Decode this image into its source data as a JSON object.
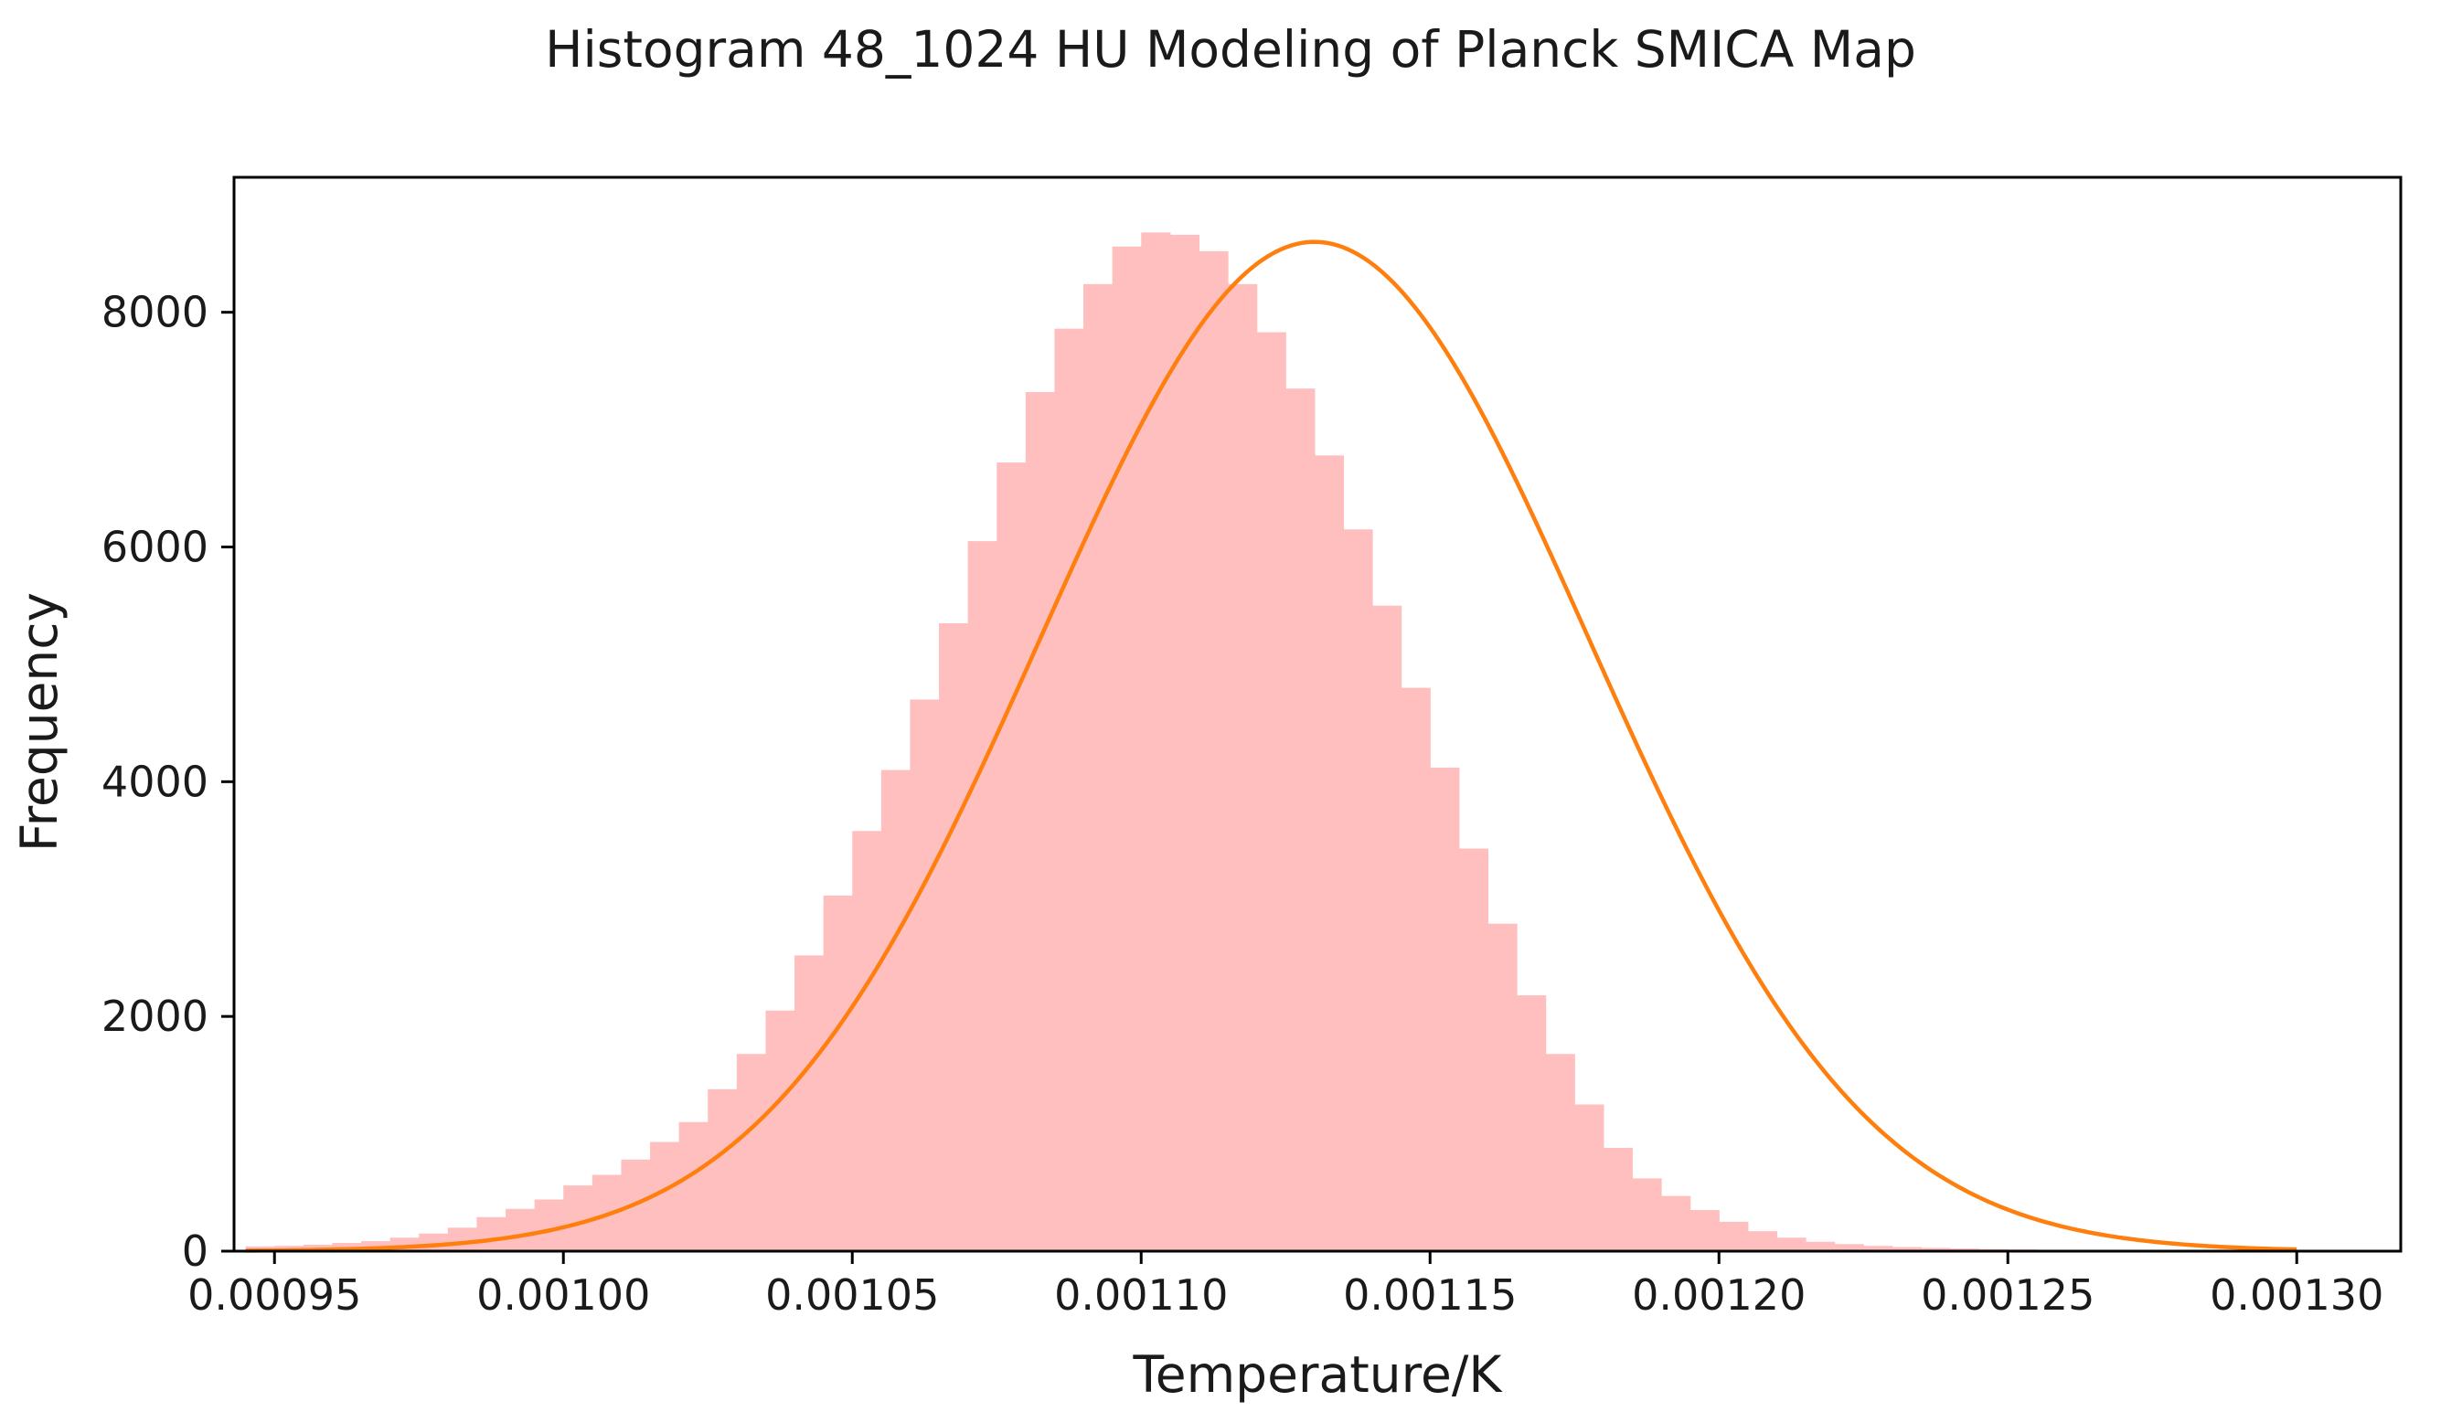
{
  "chart_data": {
    "type": "bar",
    "title": "Histogram 48_1024 HU Modeling of Planck SMICA Map",
    "xlabel": "Temperature/K",
    "ylabel": "Frequency",
    "xlim": [
      0.000943,
      0.001318
    ],
    "ylim": [
      0,
      9150
    ],
    "xticks": [
      0.00095,
      0.001,
      0.00105,
      0.0011,
      0.00115,
      0.0012,
      0.00125,
      0.0013
    ],
    "xtick_labels": [
      "0.00095",
      "0.00100",
      "0.00105",
      "0.00110",
      "0.00115",
      "0.00120",
      "0.00125",
      "0.00130"
    ],
    "yticks": [
      0,
      2000,
      4000,
      6000,
      8000
    ],
    "ytick_labels": [
      "0",
      "2000",
      "4000",
      "6000",
      "8000"
    ],
    "grid": false,
    "histogram": {
      "color": "#ffbfbf",
      "bin_start": 0.000945,
      "bin_width": 5e-06,
      "values": [
        40,
        45,
        55,
        70,
        85,
        115,
        150,
        200,
        290,
        360,
        440,
        560,
        650,
        780,
        930,
        1100,
        1380,
        1680,
        2050,
        2520,
        3030,
        3580,
        4100,
        4700,
        5350,
        6050,
        6720,
        7320,
        7860,
        8240,
        8560,
        8680,
        8660,
        8520,
        8240,
        7830,
        7350,
        6780,
        6150,
        5500,
        4800,
        4120,
        3430,
        2790,
        2180,
        1680,
        1250,
        880,
        620,
        470,
        350,
        250,
        170,
        115,
        80,
        60,
        45,
        35,
        28,
        22,
        18,
        14,
        10,
        6,
        3
      ]
    },
    "fit_curve": {
      "color": "#ff7f0e",
      "mean": 0.00113,
      "sigma": 4.75e-05,
      "amplitude": 8600,
      "x_range": [
        0.000945,
        0.0013
      ]
    }
  }
}
